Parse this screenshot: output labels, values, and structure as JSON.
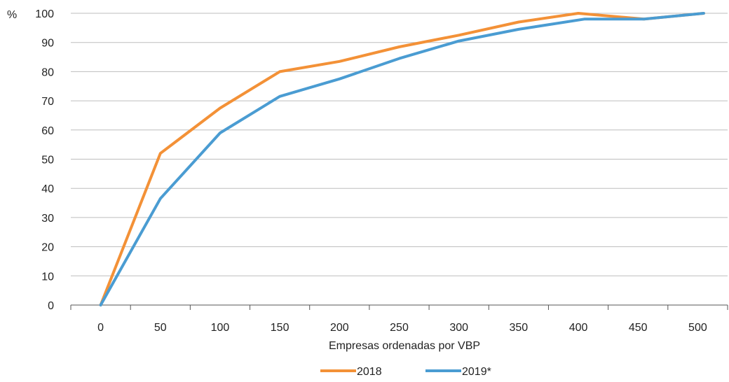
{
  "chart_data": {
    "type": "line",
    "ylabel": "%",
    "xlabel": "Empresas ordenadas por VBP",
    "x": [
      0,
      50,
      100,
      150,
      200,
      250,
      300,
      350,
      400,
      450,
      500
    ],
    "xticks": [
      "0",
      "50",
      "100",
      "150",
      "200",
      "250",
      "300",
      "350",
      "400",
      "450",
      "500"
    ],
    "yticks": [
      "0",
      "10",
      "20",
      "30",
      "40",
      "50",
      "60",
      "70",
      "80",
      "90",
      "100"
    ],
    "xlim": [
      -25,
      525
    ],
    "ylim": [
      0,
      100
    ],
    "grid": "horizontal",
    "legend": "bottom-center",
    "series": [
      {
        "name": "2018",
        "color": "#f39137",
        "points": [
          [
            0,
            0
          ],
          [
            50,
            52
          ],
          [
            100,
            67.5
          ],
          [
            150,
            80
          ],
          [
            200,
            83.5
          ],
          [
            250,
            88.5
          ],
          [
            300,
            92.5
          ],
          [
            350,
            97
          ],
          [
            400,
            100
          ],
          [
            455,
            98
          ],
          [
            505,
            100
          ]
        ]
      },
      {
        "name": "2019*",
        "color": "#4a9cd2",
        "points": [
          [
            0,
            0
          ],
          [
            50,
            36.5
          ],
          [
            100,
            59
          ],
          [
            150,
            71.5
          ],
          [
            200,
            77.5
          ],
          [
            250,
            84.5
          ],
          [
            300,
            90.5
          ],
          [
            350,
            94.5
          ],
          [
            405,
            98
          ],
          [
            455,
            98
          ],
          [
            505,
            100
          ]
        ]
      }
    ]
  }
}
